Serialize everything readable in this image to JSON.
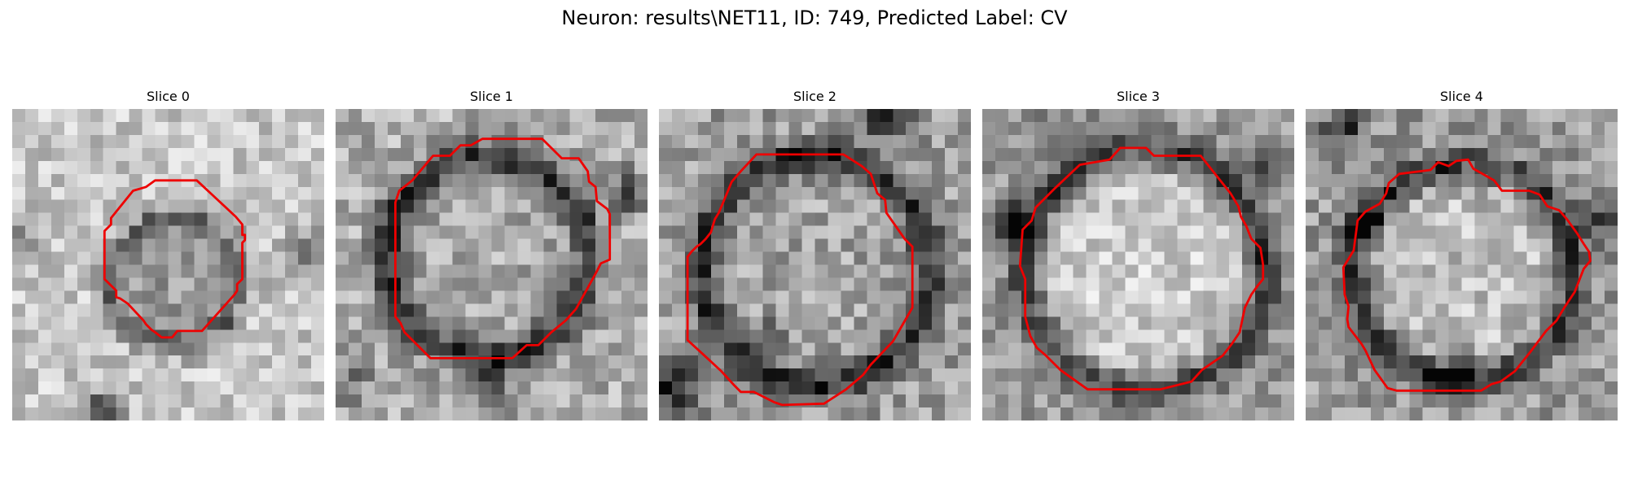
{
  "figure": {
    "title": "Neuron: results\\NET11, ID: 749, Predicted Label: CV"
  },
  "colormap": "gray",
  "colors": {
    "contour": "#ee0000",
    "background": "#ffffff"
  },
  "slices": [
    {
      "label": "Slice 0"
    },
    {
      "label": "Slice 1"
    },
    {
      "label": "Slice 2"
    },
    {
      "label": "Slice 3"
    },
    {
      "label": "Slice 4"
    }
  ]
}
